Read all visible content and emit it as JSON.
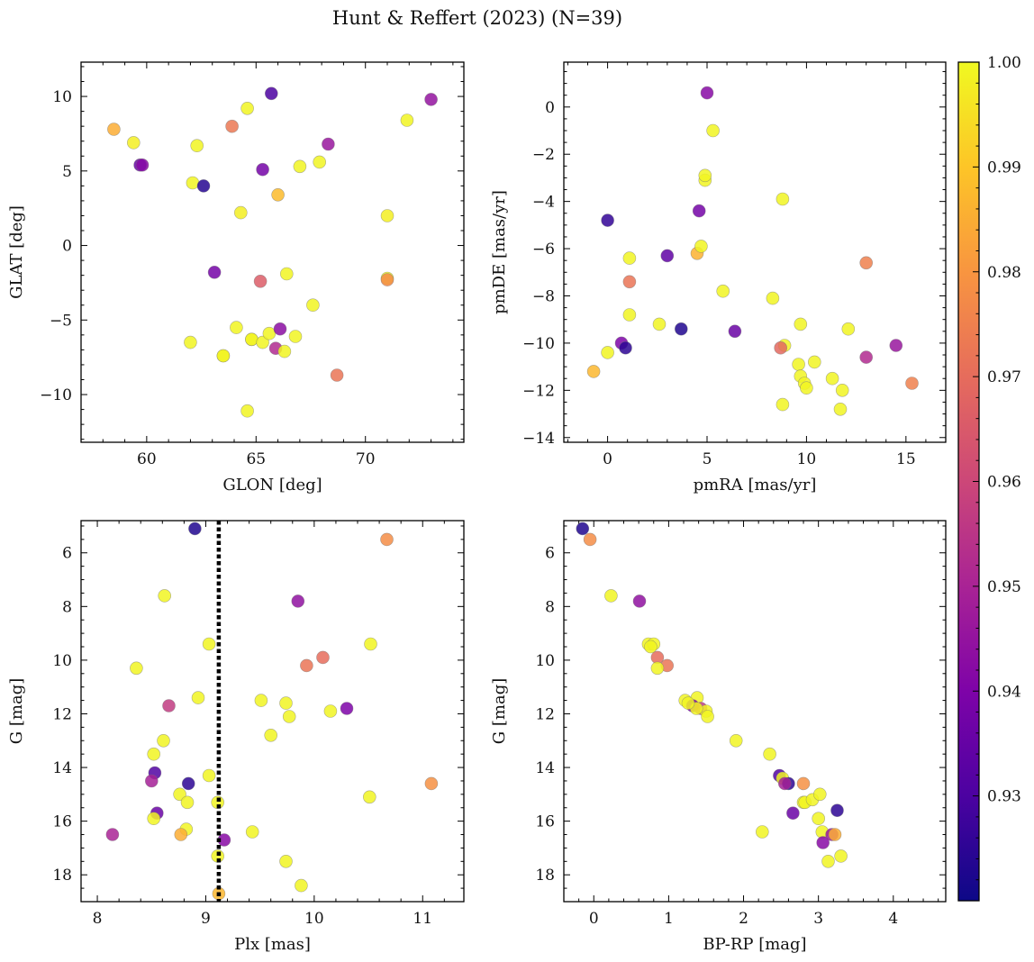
{
  "figure_title": "Hunt & Reffert (2023) (N=39)",
  "colorbar": {
    "colormap": "plasma",
    "vmin": 0.92,
    "vmax": 1.0,
    "ticks": [
      0.93,
      0.94,
      0.95,
      0.96,
      0.97,
      0.98,
      0.99,
      1.0
    ],
    "tick_labels": [
      "0.93",
      "0.94",
      "0.95",
      "0.96",
      "0.97",
      "0.98",
      "0.99",
      "1.00"
    ]
  },
  "chart_data": [
    {
      "id": "glon-glat",
      "type": "scatter",
      "xlabel": "GLON [deg]",
      "ylabel": "GLAT [deg]",
      "xlim": [
        57,
        74.5
      ],
      "ylim": [
        -13.2,
        12.3
      ],
      "y_inverted": false,
      "xticks": [
        60,
        65,
        70
      ],
      "yticks": [
        -10,
        -5,
        0,
        5,
        10
      ],
      "x": [
        58.5,
        59.4,
        59.7,
        59.8,
        62.1,
        62.3,
        62.6,
        63.1,
        63.5,
        63.5,
        63.9,
        64.1,
        64.3,
        64.6,
        64.6,
        64.8,
        64.8,
        65.2,
        65.3,
        65.3,
        65.6,
        65.7,
        65.9,
        66,
        66.1,
        66.3,
        66.4,
        66.8,
        67,
        67.6,
        67.9,
        68.3,
        68.7,
        71,
        71,
        71,
        71.9,
        73,
        62
      ],
      "y": [
        7.8,
        6.9,
        5.4,
        5.4,
        4.2,
        6.7,
        4,
        -1.8,
        -7.4,
        -7.4,
        8,
        -5.5,
        2.2,
        -11.1,
        9.2,
        -6.3,
        -6.3,
        -2.4,
        -6.5,
        5.1,
        -5.9,
        10.2,
        -6.9,
        3.4,
        -5.6,
        -7.1,
        -1.9,
        -6.1,
        5.3,
        -4,
        5.6,
        6.8,
        -8.7,
        -2.2,
        -2.3,
        2,
        8.4,
        9.8,
        -6.5
      ],
      "color_values": [
        0.985,
        0.998,
        0.935,
        0.942,
        0.999,
        0.999,
        0.924,
        0.938,
        0.998,
        0.999,
        0.973,
        0.999,
        0.998,
        0.999,
        0.999,
        0.998,
        0.999,
        0.966,
        0.999,
        0.938,
        0.999,
        0.93,
        0.952,
        0.988,
        0.943,
        0.999,
        0.999,
        0.999,
        0.999,
        0.999,
        0.999,
        0.946,
        0.972,
        0.999,
        0.977,
        0.998,
        0.999,
        0.945,
        0.999
      ]
    },
    {
      "id": "pm",
      "type": "scatter",
      "xlabel": "pmRA [mas/yr]",
      "ylabel": "pmDE [mas/yr]",
      "xlim": [
        -2.2,
        17
      ],
      "ylim": [
        -14.2,
        1.9
      ],
      "y_inverted": false,
      "xticks": [
        0,
        5,
        10,
        15
      ],
      "yticks": [
        -14,
        -12,
        -10,
        -8,
        -6,
        -4,
        -2,
        0
      ],
      "x": [
        5,
        5.3,
        4.9,
        0,
        1.1,
        3,
        4.5,
        4.7,
        4.6,
        1.1,
        5.8,
        8.8,
        8.3,
        1.1,
        0.7,
        0.9,
        0,
        2.6,
        3.7,
        6.4,
        8.9,
        8.7,
        9.7,
        10.4,
        9.6,
        9.7,
        9.9,
        10,
        11.3,
        11.8,
        11.7,
        12.1,
        8.8,
        13,
        13,
        14.5,
        15.3,
        -0.7,
        4.9
      ],
      "y": [
        0.6,
        -1,
        -3.1,
        -4.8,
        -6.4,
        -6.3,
        -6.2,
        -5.9,
        -4.4,
        -7.4,
        -7.8,
        -3.9,
        -8.1,
        -8.8,
        -10,
        -10.2,
        -10.4,
        -9.2,
        -9.4,
        -9.5,
        -10.1,
        -10.2,
        -9.2,
        -10.8,
        -10.9,
        -11.4,
        -11.7,
        -11.9,
        -11.5,
        -12,
        -12.8,
        -9.4,
        -12.6,
        -6.6,
        -10.6,
        -10.1,
        -11.7,
        -11.2,
        -2.9
      ],
      "color_values": [
        0.942,
        0.999,
        0.999,
        0.926,
        0.999,
        0.934,
        0.986,
        0.999,
        0.938,
        0.972,
        0.999,
        0.999,
        0.999,
        0.999,
        0.94,
        0.925,
        0.999,
        0.999,
        0.923,
        0.936,
        0.999,
        0.969,
        0.999,
        0.999,
        0.999,
        0.999,
        0.999,
        0.999,
        0.999,
        0.999,
        0.999,
        0.999,
        0.999,
        0.975,
        0.952,
        0.946,
        0.975,
        0.987,
        0.999
      ]
    },
    {
      "id": "plx-g",
      "type": "scatter",
      "xlabel": "Plx [mas]",
      "ylabel": "G [mag]",
      "xlim": [
        7.85,
        11.38
      ],
      "ylim": [
        4.8,
        19
      ],
      "y_inverted": true,
      "xticks": [
        8,
        9,
        10,
        11
      ],
      "yticks": [
        6,
        8,
        10,
        12,
        14,
        16,
        18
      ],
      "vline": {
        "x": 9.12,
        "style": "dotted"
      },
      "x": [
        8.9,
        10.67,
        8.62,
        9.85,
        9.03,
        10.52,
        10.08,
        9.93,
        8.36,
        8.93,
        8.66,
        9.51,
        9.74,
        9.77,
        10.15,
        10.3,
        8.61,
        8.52,
        9.03,
        8.53,
        8.84,
        11.08,
        8.76,
        9.11,
        8.83,
        10.51,
        8.55,
        8.52,
        9.43,
        8.82,
        8.77,
        8.14,
        9.17,
        9.11,
        9.74,
        9.88,
        9.12,
        8.5,
        9.6
      ],
      "y": [
        5.1,
        5.5,
        7.6,
        7.8,
        9.4,
        9.4,
        9.9,
        10.2,
        10.3,
        11.4,
        11.7,
        11.5,
        11.6,
        12.1,
        11.9,
        11.8,
        13,
        13.5,
        14.3,
        14.2,
        14.6,
        14.6,
        15,
        15.3,
        15.3,
        15.1,
        15.7,
        15.9,
        16.4,
        16.3,
        16.5,
        16.5,
        16.7,
        17.3,
        17.5,
        18.4,
        18.7,
        14.5,
        12.8
      ],
      "color_values": [
        0.923,
        0.978,
        0.999,
        0.944,
        0.999,
        0.999,
        0.97,
        0.972,
        0.999,
        0.999,
        0.957,
        0.999,
        0.999,
        0.999,
        0.999,
        0.94,
        0.999,
        0.999,
        0.999,
        0.931,
        0.925,
        0.979,
        0.999,
        0.999,
        0.999,
        0.999,
        0.936,
        0.999,
        0.999,
        0.999,
        0.985,
        0.95,
        0.942,
        0.999,
        0.999,
        0.999,
        0.987,
        0.949,
        0.999
      ]
    },
    {
      "id": "cmd",
      "type": "scatter",
      "xlabel": "BP-RP [mag]",
      "ylabel": "G [mag]",
      "xlim": [
        -0.4,
        4.7
      ],
      "ylim": [
        4.8,
        19
      ],
      "y_inverted": true,
      "xticks": [
        0,
        1,
        2,
        3,
        4
      ],
      "yticks": [
        6,
        8,
        10,
        12,
        14,
        16,
        18
      ],
      "x": [
        -0.15,
        -0.05,
        0.23,
        0.61,
        0.73,
        0.8,
        0.85,
        0.98,
        0.85,
        1.22,
        1.38,
        1.32,
        1.43,
        1.5,
        1.52,
        1.9,
        2.35,
        2.48,
        2.52,
        2.6,
        2.8,
        2.8,
        2.82,
        2.92,
        3,
        3.05,
        3.18,
        3.22,
        3.25,
        2.25,
        3.06,
        3.13,
        3.02,
        2.66,
        1.37,
        2.55,
        1.26,
        0.76,
        3.3
      ],
      "y": [
        5.1,
        5.5,
        7.6,
        7.8,
        9.4,
        9.4,
        9.9,
        10.2,
        10.3,
        11.5,
        11.4,
        11.7,
        11.8,
        11.9,
        12.1,
        13,
        13.5,
        14.3,
        14.4,
        14.6,
        14.6,
        15.3,
        15.3,
        15.2,
        15.9,
        16.4,
        16.5,
        16.5,
        15.6,
        16.4,
        16.8,
        17.5,
        15,
        15.7,
        11.8,
        14.6,
        11.6,
        9.5,
        17.3
      ],
      "color_values": [
        0.923,
        0.978,
        0.999,
        0.944,
        0.999,
        0.999,
        0.97,
        0.972,
        0.999,
        0.999,
        0.999,
        0.94,
        0.957,
        0.999,
        0.999,
        0.999,
        0.999,
        0.931,
        0.999,
        0.925,
        0.979,
        0.999,
        0.999,
        0.999,
        0.999,
        0.999,
        0.946,
        0.985,
        0.925,
        0.999,
        0.942,
        0.999,
        0.999,
        0.936,
        0.999,
        0.949,
        0.999,
        0.999,
        0.999
      ]
    }
  ]
}
